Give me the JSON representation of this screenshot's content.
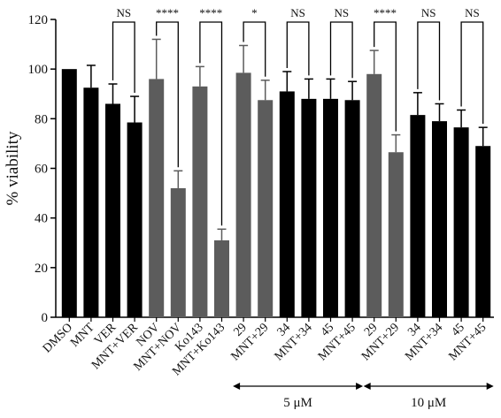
{
  "chart_data": {
    "type": "bar",
    "ylabel": "% viability",
    "ylim": [
      0,
      120
    ],
    "yticks": [
      0,
      20,
      40,
      60,
      80,
      100,
      120
    ],
    "colors": {
      "black": "#000000",
      "gray": "#5c5c5c"
    },
    "categories": [
      "DMSO",
      "MNT",
      "VER",
      "MNT+VER",
      "NOV",
      "MNT+NOV",
      "Ko143",
      "MNT+Ko143",
      "29",
      "MNT+29",
      "34",
      "MNT+34",
      "45",
      "MNT+45",
      "29",
      "MNT+29",
      "34",
      "MNT+34",
      "45",
      "MNT+45"
    ],
    "values": [
      100,
      92.5,
      86,
      78.5,
      96,
      52,
      93,
      31,
      98.5,
      87.5,
      91,
      88,
      88,
      87.5,
      98,
      66.5,
      81.5,
      79,
      76.5,
      69
    ],
    "errors": [
      0,
      9,
      8,
      10.5,
      16,
      7,
      8,
      4.5,
      11,
      8,
      8,
      8,
      8,
      7.5,
      9.5,
      7,
      9,
      7,
      7,
      7.5
    ],
    "bar_colors": [
      "black",
      "black",
      "black",
      "black",
      "gray",
      "gray",
      "gray",
      "gray",
      "gray",
      "gray",
      "black",
      "black",
      "black",
      "black",
      "gray",
      "gray",
      "black",
      "black",
      "black",
      "black"
    ],
    "comparisons": [
      {
        "pair": [
          2,
          3
        ],
        "label": "NS"
      },
      {
        "pair": [
          4,
          5
        ],
        "label": "****"
      },
      {
        "pair": [
          6,
          7
        ],
        "label": "****"
      },
      {
        "pair": [
          8,
          9
        ],
        "label": "*"
      },
      {
        "pair": [
          10,
          11
        ],
        "label": "NS"
      },
      {
        "pair": [
          12,
          13
        ],
        "label": "NS"
      },
      {
        "pair": [
          14,
          15
        ],
        "label": "****"
      },
      {
        "pair": [
          16,
          17
        ],
        "label": "NS"
      },
      {
        "pair": [
          18,
          19
        ],
        "label": "NS"
      }
    ],
    "ranges": [
      {
        "label": "5 μM",
        "from": 8,
        "to": 13
      },
      {
        "label": "10 μM",
        "from": 14,
        "to": 19
      }
    ]
  }
}
